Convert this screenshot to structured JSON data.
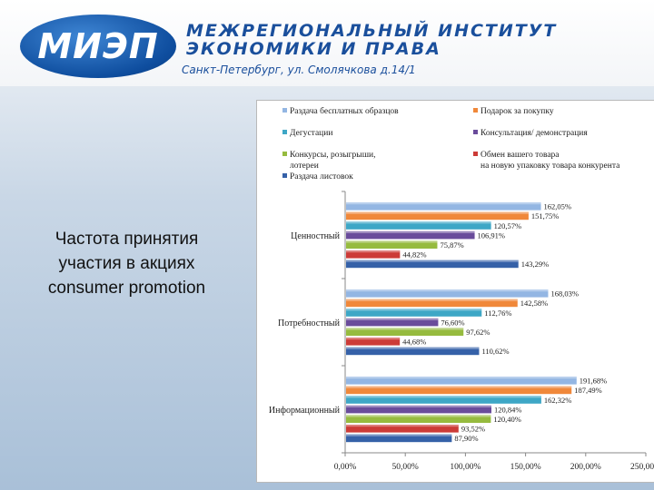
{
  "header": {
    "logo_text": "МИЭП",
    "institute_line1": "МЕЖРЕГИОНАЛЬНЫЙ ИНСТИТУТ",
    "institute_line2": "ЭКОНОМИКИ И ПРАВА",
    "address": "Санкт-Петербург, ул. Смолячкова д.14/1"
  },
  "side_title": {
    "line1": "Частота принятия",
    "line2": "участия в акциях",
    "line3": "consumer promotion"
  },
  "chart_data": {
    "type": "bar",
    "orientation": "horizontal",
    "categories": [
      "Ценностный",
      "Потребностный",
      "Информационный"
    ],
    "series": [
      {
        "name": "Раздача бесплатных образцов",
        "color": "#93b6e3",
        "values": [
          162.05,
          168.03,
          191.68
        ],
        "labels": [
          "162,05%",
          "168,03%",
          "191,68%"
        ]
      },
      {
        "name": "Подарок за покупку",
        "color": "#f0883a",
        "values": [
          151.75,
          142.58,
          187.49
        ],
        "labels": [
          "151,75%",
          "142,58%",
          "187,49%"
        ]
      },
      {
        "name": "Дегустации",
        "color": "#3ea7c6",
        "values": [
          120.57,
          112.76,
          162.32
        ],
        "labels": [
          "120,57%",
          "112,76%",
          "162,32%"
        ]
      },
      {
        "name": "Консультация/ демонстрация",
        "color": "#6a4c9b",
        "values": [
          106.91,
          76.6,
          120.84
        ],
        "labels": [
          "106,91%",
          "76,60%",
          "120,84%"
        ]
      },
      {
        "name": "Конкурсы, розыгрыши, лотереи",
        "color": "#96bb3f",
        "values": [
          75.87,
          97.62,
          120.4
        ],
        "labels": [
          "75,87%",
          "97,62%",
          "120,40%"
        ]
      },
      {
        "name": "Обмен вашего товара на новую упаковку товара конкурента",
        "color": "#cc3b37",
        "values": [
          44.82,
          44.68,
          93.52
        ],
        "labels": [
          "44,82%",
          "44,68%",
          "93,52%"
        ]
      },
      {
        "name": "Раздача листовок",
        "color": "#3561a8",
        "values": [
          143.29,
          110.62,
          87.9
        ],
        "labels": [
          "143,29%",
          "110,62%",
          "87,90%"
        ]
      }
    ],
    "legend": [
      {
        "lines": [
          "Раздача бесплатных образцов"
        ],
        "color": "#93b6e3"
      },
      {
        "lines": [
          "Подарок за покупку"
        ],
        "color": "#f0883a"
      },
      {
        "lines": [
          "Дегустации"
        ],
        "color": "#3ea7c6"
      },
      {
        "lines": [
          "Консультация/ демонстрация"
        ],
        "color": "#6a4c9b"
      },
      {
        "lines": [
          "Конкурсы, розыгрыши,",
          "лотереи"
        ],
        "color": "#96bb3f"
      },
      {
        "lines": [
          "Обмен вашего товара",
          "на новую упаковку товара конкурента"
        ],
        "color": "#cc3b37"
      },
      {
        "lines": [
          "Раздача листовок"
        ],
        "color": "#3561a8"
      }
    ],
    "xlim": [
      0,
      250
    ],
    "xticks": [
      0,
      50,
      100,
      150,
      200,
      250
    ],
    "xtick_labels": [
      "0,00%",
      "50,00%",
      "100,00%",
      "150,00%",
      "200,00%",
      "250,00%"
    ],
    "legend_position": "top",
    "grid": false
  }
}
